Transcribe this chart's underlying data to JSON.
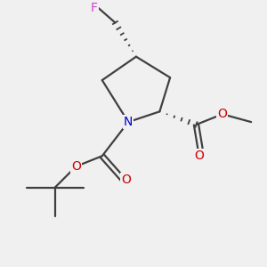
{
  "bg_color": "#f0f0f0",
  "atom_colors": {
    "C": "#404040",
    "N": "#0000cc",
    "O": "#cc0000",
    "F": "#cc44cc"
  },
  "bond_color": "#404040",
  "line_width": 1.6
}
